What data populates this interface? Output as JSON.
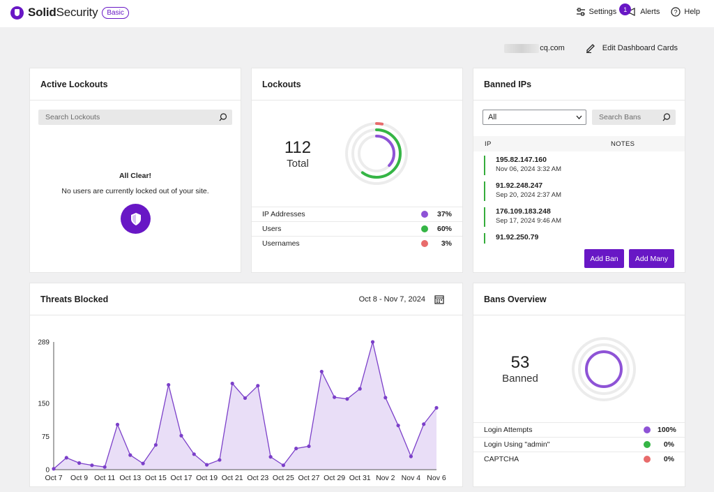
{
  "brand": {
    "name_bold": "Solid",
    "name_light": "Security",
    "tier": "Basic"
  },
  "topbar": {
    "settings_label": "Settings",
    "alerts_label": "Alerts",
    "alerts_count": "1",
    "help_label": "Help"
  },
  "subbar": {
    "site_suffix": "cq.com",
    "edit_label": "Edit Dashboard Cards"
  },
  "active_lockouts": {
    "title": "Active Lockouts",
    "search_placeholder": "Search Lockouts",
    "status_title": "All Clear!",
    "status_text": "No users are currently locked out of your site."
  },
  "lockouts": {
    "title": "Lockouts",
    "total": "112",
    "total_label": "Total",
    "rows": [
      {
        "label": "IP Addresses",
        "pct": "37%",
        "color": "#8e53d6"
      },
      {
        "label": "Users",
        "pct": "60%",
        "color": "#35b545"
      },
      {
        "label": "Usernames",
        "pct": "3%",
        "color": "#e86b6b"
      }
    ]
  },
  "banned_ips": {
    "title": "Banned IPs",
    "filter_value": "All",
    "search_placeholder": "Search Bans",
    "col_ip": "IP",
    "col_notes": "NOTES",
    "items": [
      {
        "ip": "195.82.147.160",
        "date": "Nov 06, 2024 3:32 AM"
      },
      {
        "ip": "91.92.248.247",
        "date": "Sep 20, 2024 2:37 AM"
      },
      {
        "ip": "176.109.183.248",
        "date": "Sep 17, 2024 9:46 AM"
      },
      {
        "ip": "91.92.250.79",
        "date": ""
      }
    ],
    "add_ban": "Add Ban",
    "add_many": "Add Many"
  },
  "threats": {
    "title": "Threats Blocked",
    "date_range": "Oct 8 - Nov 7, 2024"
  },
  "bans_overview": {
    "title": "Bans Overview",
    "total": "53",
    "total_label": "Banned",
    "rows": [
      {
        "label": "Login Attempts",
        "pct": "100%",
        "color": "#8e53d6"
      },
      {
        "label": "Login Using \"admin\"",
        "pct": "0%",
        "color": "#35b545"
      },
      {
        "label": "CAPTCHA",
        "pct": "0%",
        "color": "#e86b6b"
      }
    ]
  },
  "colors": {
    "accent": "#6817c5",
    "series_line": "#7b3fc9",
    "series_fill": "#e9def7"
  },
  "chart_data": {
    "type": "area",
    "title": "Threats Blocked",
    "xlabel": "",
    "ylabel": "",
    "ylim": [
      0,
      289
    ],
    "yticks": [
      0,
      75,
      150,
      289
    ],
    "x": [
      "Oct 7",
      "Oct 8",
      "Oct 9",
      "Oct 10",
      "Oct 11",
      "Oct 12",
      "Oct 13",
      "Oct 14",
      "Oct 15",
      "Oct 16",
      "Oct 17",
      "Oct 18",
      "Oct 19",
      "Oct 20",
      "Oct 21",
      "Oct 22",
      "Oct 23",
      "Oct 24",
      "Oct 25",
      "Oct 26",
      "Oct 27",
      "Oct 28",
      "Oct 29",
      "Oct 30",
      "Oct 31",
      "Nov 1",
      "Nov 2",
      "Nov 3",
      "Nov 4",
      "Nov 5",
      "Nov 6"
    ],
    "xtick_labels": [
      "Oct 7",
      "Oct 9",
      "Oct 11",
      "Oct 13",
      "Oct 15",
      "Oct 17",
      "Oct 19",
      "Oct 21",
      "Oct 23",
      "Oct 25",
      "Oct 27",
      "Oct 29",
      "Oct 31",
      "Nov 2",
      "Nov 4",
      "Nov 6"
    ],
    "series": [
      {
        "values": [
          2,
          27,
          15,
          10,
          6,
          102,
          33,
          14,
          56,
          192,
          77,
          35,
          11,
          22,
          195,
          162,
          190,
          29,
          10,
          48,
          53,
          222,
          164,
          160,
          183,
          289,
          163,
          100,
          30,
          103,
          140
        ]
      }
    ]
  }
}
